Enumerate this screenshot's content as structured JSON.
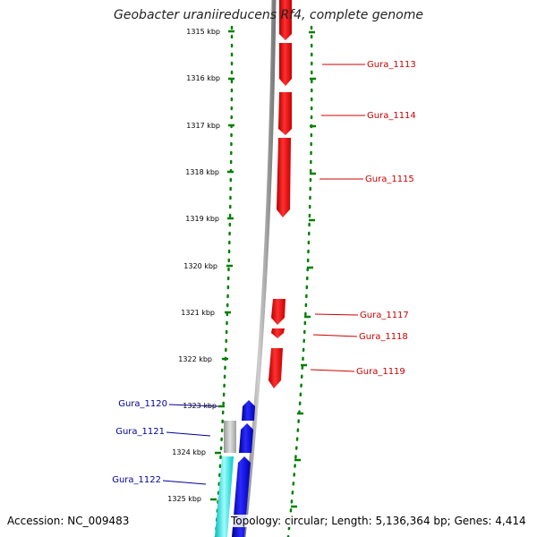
{
  "map": {
    "title": "Geobacter uraniireducens Rf4, complete genome",
    "accession": "Accession: NC_009483",
    "topology": "Topology: circular; Length: 5,136,364 bp; Genes: 4,414",
    "colors": {
      "forward_gene": "#ff0000",
      "reverse_gene": "#0000ff",
      "grey_feature": "#b0b0b0",
      "cyan_feature": "#00e5e5",
      "backbone": "#888888",
      "tick": "#008000",
      "forward_label": "#cc0000",
      "reverse_label": "#000099"
    },
    "ticks": [
      {
        "label": "1315 kbp"
      },
      {
        "label": "1316 kbp"
      },
      {
        "label": "1317 kbp"
      },
      {
        "label": "1318 kbp"
      },
      {
        "label": "1319 kbp"
      },
      {
        "label": "1320 kbp"
      },
      {
        "label": "1321 kbp"
      },
      {
        "label": "1322 kbp"
      },
      {
        "label": "1323 kbp"
      },
      {
        "label": "1324 kbp"
      },
      {
        "label": "1325 kbp"
      }
    ],
    "genes_forward": [
      {
        "label": "Gura_1113"
      },
      {
        "label": "Gura_1114"
      },
      {
        "label": "Gura_1115"
      },
      {
        "label": "Gura_1117"
      },
      {
        "label": "Gura_1118"
      },
      {
        "label": "Gura_1119"
      }
    ],
    "genes_reverse": [
      {
        "label": "Gura_1120"
      },
      {
        "label": "Gura_1121"
      },
      {
        "label": "Gura_1122"
      }
    ]
  }
}
